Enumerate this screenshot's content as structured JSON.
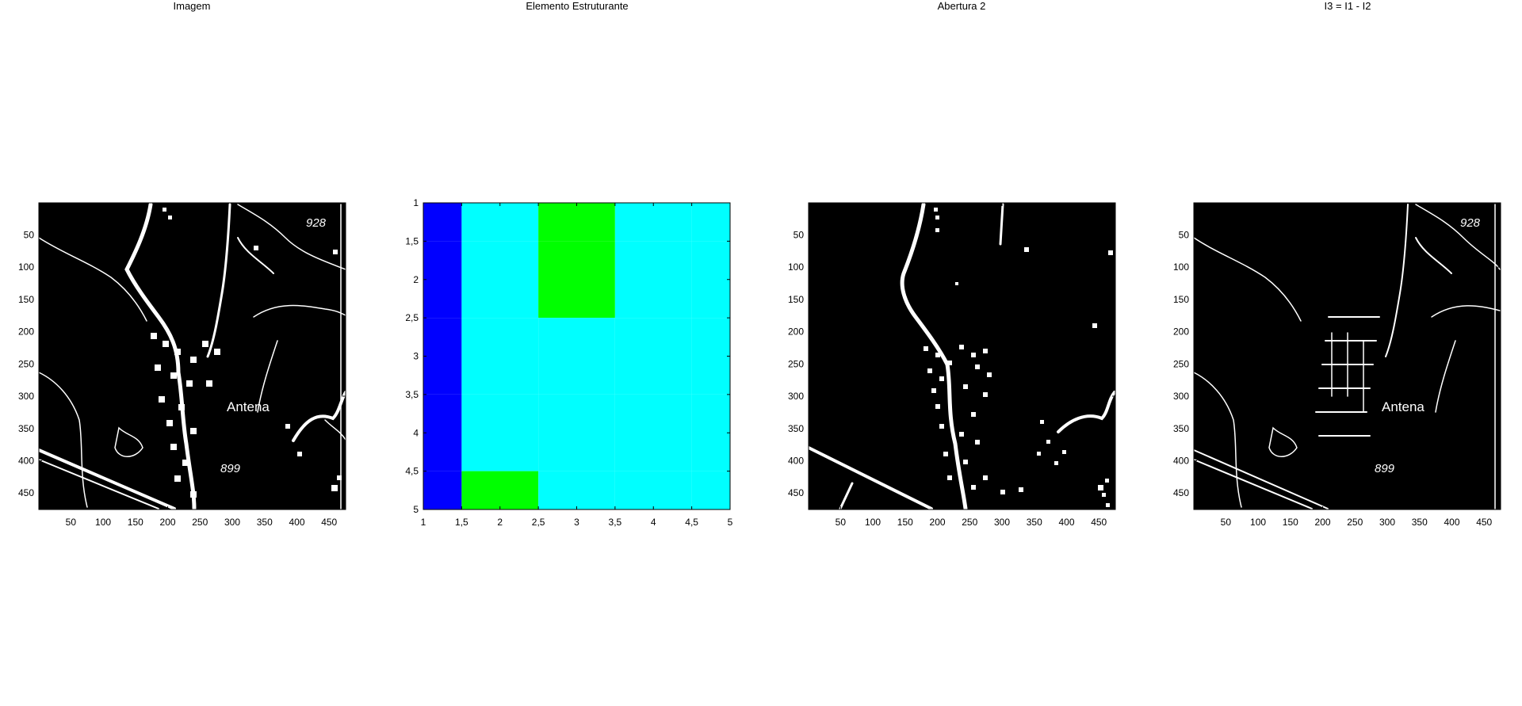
{
  "panels": [
    {
      "title": "Imagem"
    },
    {
      "title": "Elemento Estruturante"
    },
    {
      "title": "Abertura 2"
    },
    {
      "title": "I3 = I1 - I2"
    }
  ],
  "map_labels": {
    "antenna": "Antena",
    "elev_top": "928",
    "elev_bottom": "899"
  },
  "colors": {
    "background": "#ffffff",
    "image_black": "#000000",
    "image_white": "#ffffff",
    "se_blue": "#0000ff",
    "se_cyan": "#00ffff",
    "se_green": "#00ff00"
  },
  "chart_data": [
    {
      "type": "heatmap",
      "title": "Imagem",
      "xlim": [
        0.5,
        475.5
      ],
      "ylim": [
        0.5,
        475.5
      ],
      "y_reversed": true,
      "xticks": [
        50,
        100,
        150,
        200,
        250,
        300,
        350,
        400,
        450
      ],
      "yticks": [
        50,
        100,
        150,
        200,
        250,
        300,
        350,
        400,
        450
      ],
      "colormap": "gray",
      "content": "binary topographic map image"
    },
    {
      "type": "heatmap",
      "title": "Elemento Estruturante",
      "xlim": [
        1,
        5
      ],
      "ylim": [
        1,
        5
      ],
      "y_reversed": true,
      "xticks": [
        "1",
        "1,5",
        "2",
        "2,5",
        "3",
        "3,5",
        "4",
        "4,5",
        "5"
      ],
      "yticks": [
        "1",
        "1,5",
        "2",
        "2,5",
        "3",
        "3,5",
        "4",
        "4,5",
        "5"
      ],
      "colormap": "jet-like",
      "matrix": [
        [
          0,
          0.5,
          1,
          0.5,
          0.5
        ],
        [
          0,
          0.5,
          1,
          0.5,
          0.5
        ],
        [
          0,
          0.5,
          0.5,
          0.5,
          0.5
        ],
        [
          0,
          0.5,
          0.5,
          0.5,
          0.5
        ],
        [
          0,
          1,
          0.5,
          0.5,
          0.5
        ]
      ]
    },
    {
      "type": "heatmap",
      "title": "Abertura 2",
      "xlim": [
        0.5,
        475.5
      ],
      "ylim": [
        0.5,
        475.5
      ],
      "y_reversed": true,
      "xticks": [
        50,
        100,
        150,
        200,
        250,
        300,
        350,
        400,
        450
      ],
      "yticks": [
        50,
        100,
        150,
        200,
        250,
        300,
        350,
        400,
        450
      ],
      "colormap": "gray",
      "content": "morphological opening of the image"
    },
    {
      "type": "heatmap",
      "title": "I3 = I1 - I2",
      "xlim": [
        0.5,
        475.5
      ],
      "ylim": [
        0.5,
        475.5
      ],
      "y_reversed": true,
      "xticks": [
        50,
        100,
        150,
        200,
        250,
        300,
        350,
        400,
        450
      ],
      "yticks": [
        50,
        100,
        150,
        200,
        250,
        300,
        350,
        400,
        450
      ],
      "colormap": "gray",
      "content": "difference image"
    }
  ]
}
